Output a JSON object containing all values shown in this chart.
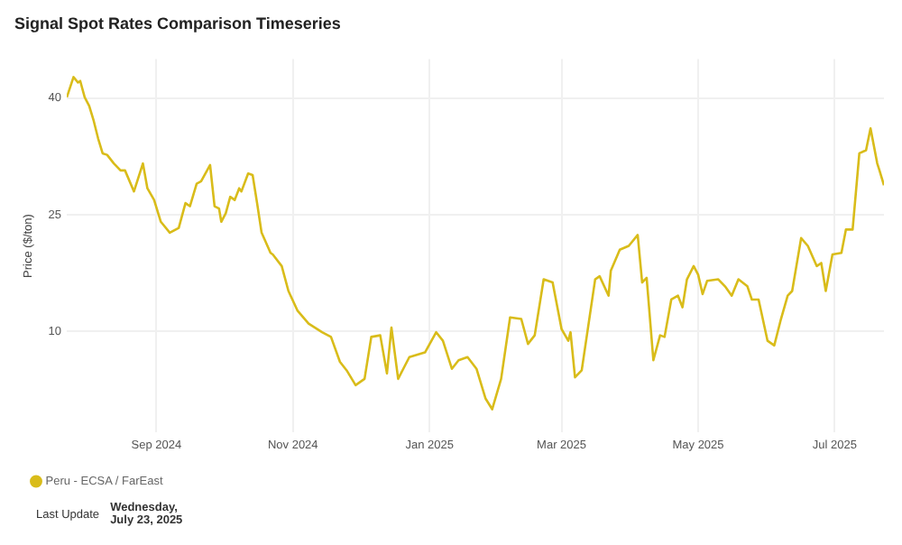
{
  "chart_data": {
    "type": "line",
    "title": "Signal Spot Rates Comparison Timeseries",
    "ylabel": "Price ($/ton)",
    "x": [
      "2024-07-23",
      "2024-07-26",
      "2024-07-28",
      "2024-07-29",
      "2024-07-31",
      "2024-08-02",
      "2024-08-04",
      "2024-08-06",
      "2024-08-08",
      "2024-08-10",
      "2024-08-13",
      "2024-08-16",
      "2024-08-18",
      "2024-08-22",
      "2024-08-26",
      "2024-08-28",
      "2024-08-31",
      "2024-09-03",
      "2024-09-07",
      "2024-09-11",
      "2024-09-14",
      "2024-09-16",
      "2024-09-19",
      "2024-09-21",
      "2024-09-25",
      "2024-09-27",
      "2024-09-29",
      "2024-09-30",
      "2024-10-02",
      "2024-10-04",
      "2024-10-06",
      "2024-10-08",
      "2024-10-09",
      "2024-10-12",
      "2024-10-14",
      "2024-10-16",
      "2024-10-18",
      "2024-10-22",
      "2024-10-23",
      "2024-10-27",
      "2024-10-30",
      "2024-11-03",
      "2024-11-08",
      "2024-11-14",
      "2024-11-18",
      "2024-11-22",
      "2024-11-25",
      "2024-11-29",
      "2024-12-03",
      "2024-12-06",
      "2024-12-10",
      "2024-12-13",
      "2024-12-15",
      "2024-12-18",
      "2024-12-23",
      "2024-12-30",
      "2025-01-04",
      "2025-01-07",
      "2025-01-11",
      "2025-01-14",
      "2025-01-18",
      "2025-01-22",
      "2025-01-26",
      "2025-01-29",
      "2025-02-02",
      "2025-02-06",
      "2025-02-11",
      "2025-02-14",
      "2025-02-17",
      "2025-02-21",
      "2025-02-25",
      "2025-03-01",
      "2025-03-04",
      "2025-03-05",
      "2025-03-07",
      "2025-03-10",
      "2025-03-16",
      "2025-03-18",
      "2025-03-22",
      "2025-03-23",
      "2025-03-27",
      "2025-03-31",
      "2025-04-04",
      "2025-04-06",
      "2025-04-08",
      "2025-04-11",
      "2025-04-14",
      "2025-04-16",
      "2025-04-19",
      "2025-04-22",
      "2025-04-24",
      "2025-04-26",
      "2025-04-29",
      "2025-05-01",
      "2025-05-03",
      "2025-05-05",
      "2025-05-10",
      "2025-05-13",
      "2025-05-16",
      "2025-05-19",
      "2025-05-23",
      "2025-05-25",
      "2025-05-28",
      "2025-06-01",
      "2025-06-04",
      "2025-06-07",
      "2025-06-10",
      "2025-06-12",
      "2025-06-16",
      "2025-06-19",
      "2025-06-23",
      "2025-06-25",
      "2025-06-27",
      "2025-06-30",
      "2025-07-04",
      "2025-07-06",
      "2025-07-09",
      "2025-07-12",
      "2025-07-15",
      "2025-07-17",
      "2025-07-20",
      "2025-07-21",
      "2025-07-23"
    ],
    "series": [
      {
        "name": "Peru - ECSA / FarEast",
        "color": "#d9bc1a",
        "values": [
          40.1,
          42.7,
          42.0,
          42.2,
          40.1,
          39.0,
          37.1,
          34.8,
          32.9,
          32.7,
          31.6,
          30.7,
          30.7,
          28.0,
          31.6,
          28.4,
          26.9,
          24.1,
          22.7,
          23.3,
          26.5,
          26.1,
          29.0,
          29.3,
          31.4,
          26.1,
          25.8,
          24.1,
          25.2,
          27.3,
          26.9,
          28.4,
          28.0,
          30.3,
          30.1,
          26.5,
          22.7,
          20.1,
          19.9,
          18.4,
          15.2,
          12.7,
          11.0,
          9.9,
          9.3,
          6.1,
          5.0,
          3.1,
          3.9,
          9.3,
          9.5,
          4.6,
          10.5,
          3.9,
          6.7,
          7.3,
          9.9,
          8.8,
          5.2,
          6.3,
          6.7,
          5.2,
          1.4,
          0.0,
          3.9,
          11.8,
          11.6,
          8.4,
          9.5,
          16.7,
          16.3,
          10.3,
          8.8,
          9.9,
          4.1,
          5.0,
          16.7,
          17.1,
          14.6,
          17.8,
          20.5,
          21.0,
          22.4,
          16.3,
          16.9,
          6.3,
          9.5,
          9.3,
          14.1,
          14.6,
          13.1,
          16.7,
          18.4,
          17.3,
          14.8,
          16.5,
          16.7,
          15.8,
          14.6,
          16.7,
          15.8,
          14.1,
          14.1,
          8.8,
          8.2,
          11.6,
          14.6,
          15.2,
          22.0,
          21.0,
          18.4,
          18.8,
          15.2,
          19.9,
          20.1,
          23.1,
          23.1,
          32.9,
          33.3,
          36.1,
          31.6,
          30.7,
          28.8
        ]
      }
    ],
    "xlim": [
      "2024-07-23",
      "2025-07-23"
    ],
    "xticks": [
      {
        "value": "2024-09-01",
        "label": "Sep 2024"
      },
      {
        "value": "2024-11-01",
        "label": "Nov 2024"
      },
      {
        "value": "2025-01-01",
        "label": "Jan 2025"
      },
      {
        "value": "2025-03-01",
        "label": "Mar 2025"
      },
      {
        "value": "2025-05-01",
        "label": "May 2025"
      },
      {
        "value": "2025-07-01",
        "label": "Jul 2025"
      }
    ],
    "ylim": [
      -3,
      45
    ],
    "yticks": [
      10,
      25,
      40
    ],
    "grid": true,
    "legend": "bottom left",
    "marker": "none",
    "line_style": "solid",
    "annotations": [
      "Last Update",
      "Wednesday, July 23, 2025"
    ]
  }
}
